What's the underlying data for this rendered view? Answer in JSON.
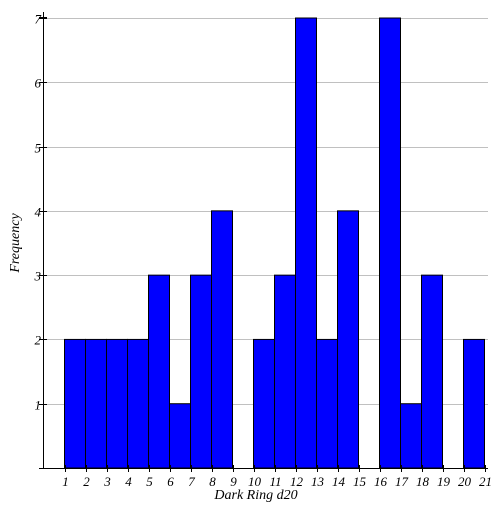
{
  "chart_data": {
    "type": "bar",
    "title": "",
    "xlabel": "Dark Ring d20",
    "ylabel": "Frequency",
    "x_ticks": [
      1,
      2,
      3,
      4,
      5,
      6,
      7,
      8,
      9,
      10,
      11,
      12,
      13,
      14,
      15,
      16,
      17,
      18,
      19,
      20,
      21
    ],
    "y_ticks": [
      1,
      2,
      3,
      4,
      5,
      6,
      7
    ],
    "xlim": [
      1,
      21
    ],
    "ylim": [
      0,
      7
    ],
    "grid": "horizontal",
    "bins": [
      {
        "x0": 1,
        "x1": 2,
        "value": 2
      },
      {
        "x0": 2,
        "x1": 3,
        "value": 2
      },
      {
        "x0": 3,
        "x1": 4,
        "value": 2
      },
      {
        "x0": 4,
        "x1": 5,
        "value": 2
      },
      {
        "x0": 5,
        "x1": 6,
        "value": 3
      },
      {
        "x0": 6,
        "x1": 7,
        "value": 1
      },
      {
        "x0": 7,
        "x1": 8,
        "value": 3
      },
      {
        "x0": 8,
        "x1": 9,
        "value": 4
      },
      {
        "x0": 9,
        "x1": 10,
        "value": 0
      },
      {
        "x0": 10,
        "x1": 11,
        "value": 2
      },
      {
        "x0": 11,
        "x1": 12,
        "value": 3
      },
      {
        "x0": 12,
        "x1": 13,
        "value": 7
      },
      {
        "x0": 13,
        "x1": 14,
        "value": 2
      },
      {
        "x0": 14,
        "x1": 15,
        "value": 4
      },
      {
        "x0": 15,
        "x1": 16,
        "value": 0
      },
      {
        "x0": 16,
        "x1": 17,
        "value": 7
      },
      {
        "x0": 17,
        "x1": 18,
        "value": 1
      },
      {
        "x0": 18,
        "x1": 19,
        "value": 3
      },
      {
        "x0": 19,
        "x1": 20,
        "value": 0
      },
      {
        "x0": 20,
        "x1": 21,
        "value": 2
      }
    ],
    "colors": {
      "bar_fill": "#0000ff",
      "bar_stroke": "#000000",
      "grid": "#c0c0c0",
      "axis": "#000000"
    }
  }
}
